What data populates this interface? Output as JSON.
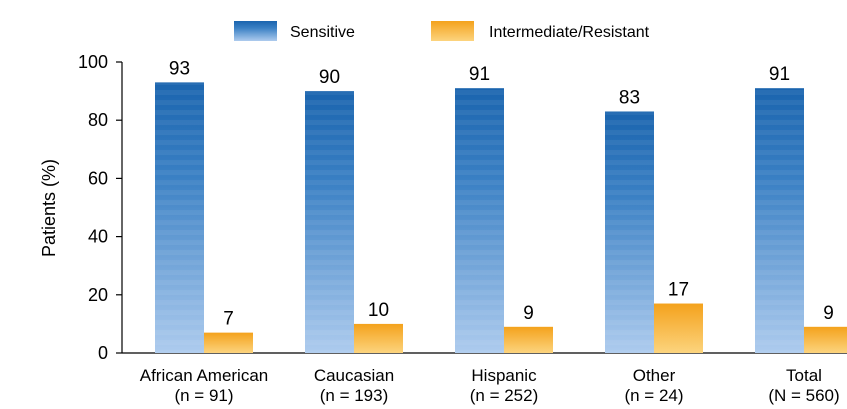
{
  "chart_data": {
    "type": "bar",
    "title": "",
    "xlabel": "",
    "ylabel": "Patients (%)",
    "ylim": [
      0,
      100
    ],
    "yticks": [
      0,
      20,
      40,
      60,
      80,
      100
    ],
    "grid": false,
    "legend_position": "top",
    "categories": [
      {
        "name": "African American",
        "n": "(n = 91)"
      },
      {
        "name": "Caucasian",
        "n": "(n = 193)"
      },
      {
        "name": "Hispanic",
        "n": "(n = 252)"
      },
      {
        "name": "Other",
        "n": "(n = 24)"
      },
      {
        "name": "Total",
        "n": "(N = 560)"
      }
    ],
    "series": [
      {
        "name": "Sensitive",
        "values": [
          93,
          90,
          91,
          83,
          91
        ],
        "color_top": "#1f6bb4",
        "color_bottom": "#a9c8ec"
      },
      {
        "name": "Intermediate/Resistant",
        "values": [
          7,
          10,
          9,
          17,
          9
        ],
        "color_top": "#f5a623",
        "color_bottom": "#fbd27a"
      }
    ]
  }
}
